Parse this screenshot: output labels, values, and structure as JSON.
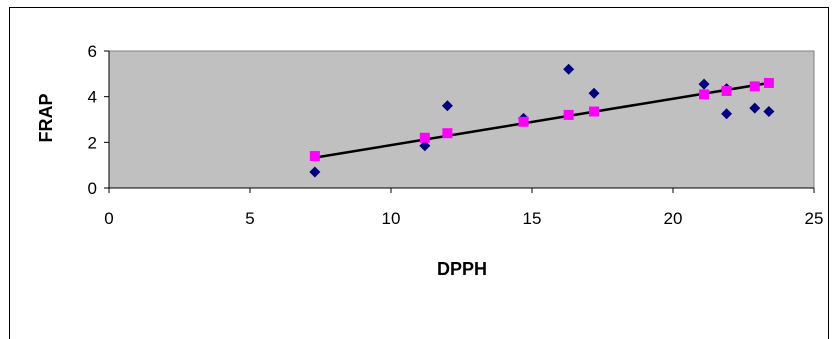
{
  "chart_data": {
    "type": "scatter",
    "title": "",
    "xlabel": "DPPH",
    "ylabel": "FRAP",
    "xlim": [
      0,
      25
    ],
    "ylim": [
      0,
      6
    ],
    "x_ticks": [
      0,
      5,
      10,
      15,
      20,
      25
    ],
    "y_ticks": [
      0,
      2,
      4,
      6
    ],
    "grid": false,
    "legend": "none",
    "series": [
      {
        "marker": "diamond",
        "color": "#000080",
        "points": [
          [
            7.3,
            0.7
          ],
          [
            11.2,
            1.85
          ],
          [
            12.0,
            3.6
          ],
          [
            14.7,
            3.05
          ],
          [
            16.3,
            5.2
          ],
          [
            17.2,
            4.15
          ],
          [
            21.1,
            4.55
          ],
          [
            21.9,
            4.35
          ],
          [
            21.9,
            3.25
          ],
          [
            22.9,
            3.5
          ],
          [
            23.4,
            3.35
          ]
        ]
      },
      {
        "marker": "square",
        "color": "#ff00ff",
        "points": [
          [
            7.3,
            1.4
          ],
          [
            11.2,
            2.2
          ],
          [
            12.0,
            2.4
          ],
          [
            14.7,
            2.9
          ],
          [
            16.3,
            3.2
          ],
          [
            17.2,
            3.35
          ],
          [
            21.1,
            4.1
          ],
          [
            21.9,
            4.25
          ],
          [
            22.9,
            4.45
          ],
          [
            23.4,
            4.6
          ]
        ]
      }
    ],
    "trendline": {
      "color": "#000000",
      "from": [
        7.3,
        1.33
      ],
      "to": [
        23.4,
        4.6
      ]
    },
    "plot_area_color": "#c0c0c0"
  }
}
